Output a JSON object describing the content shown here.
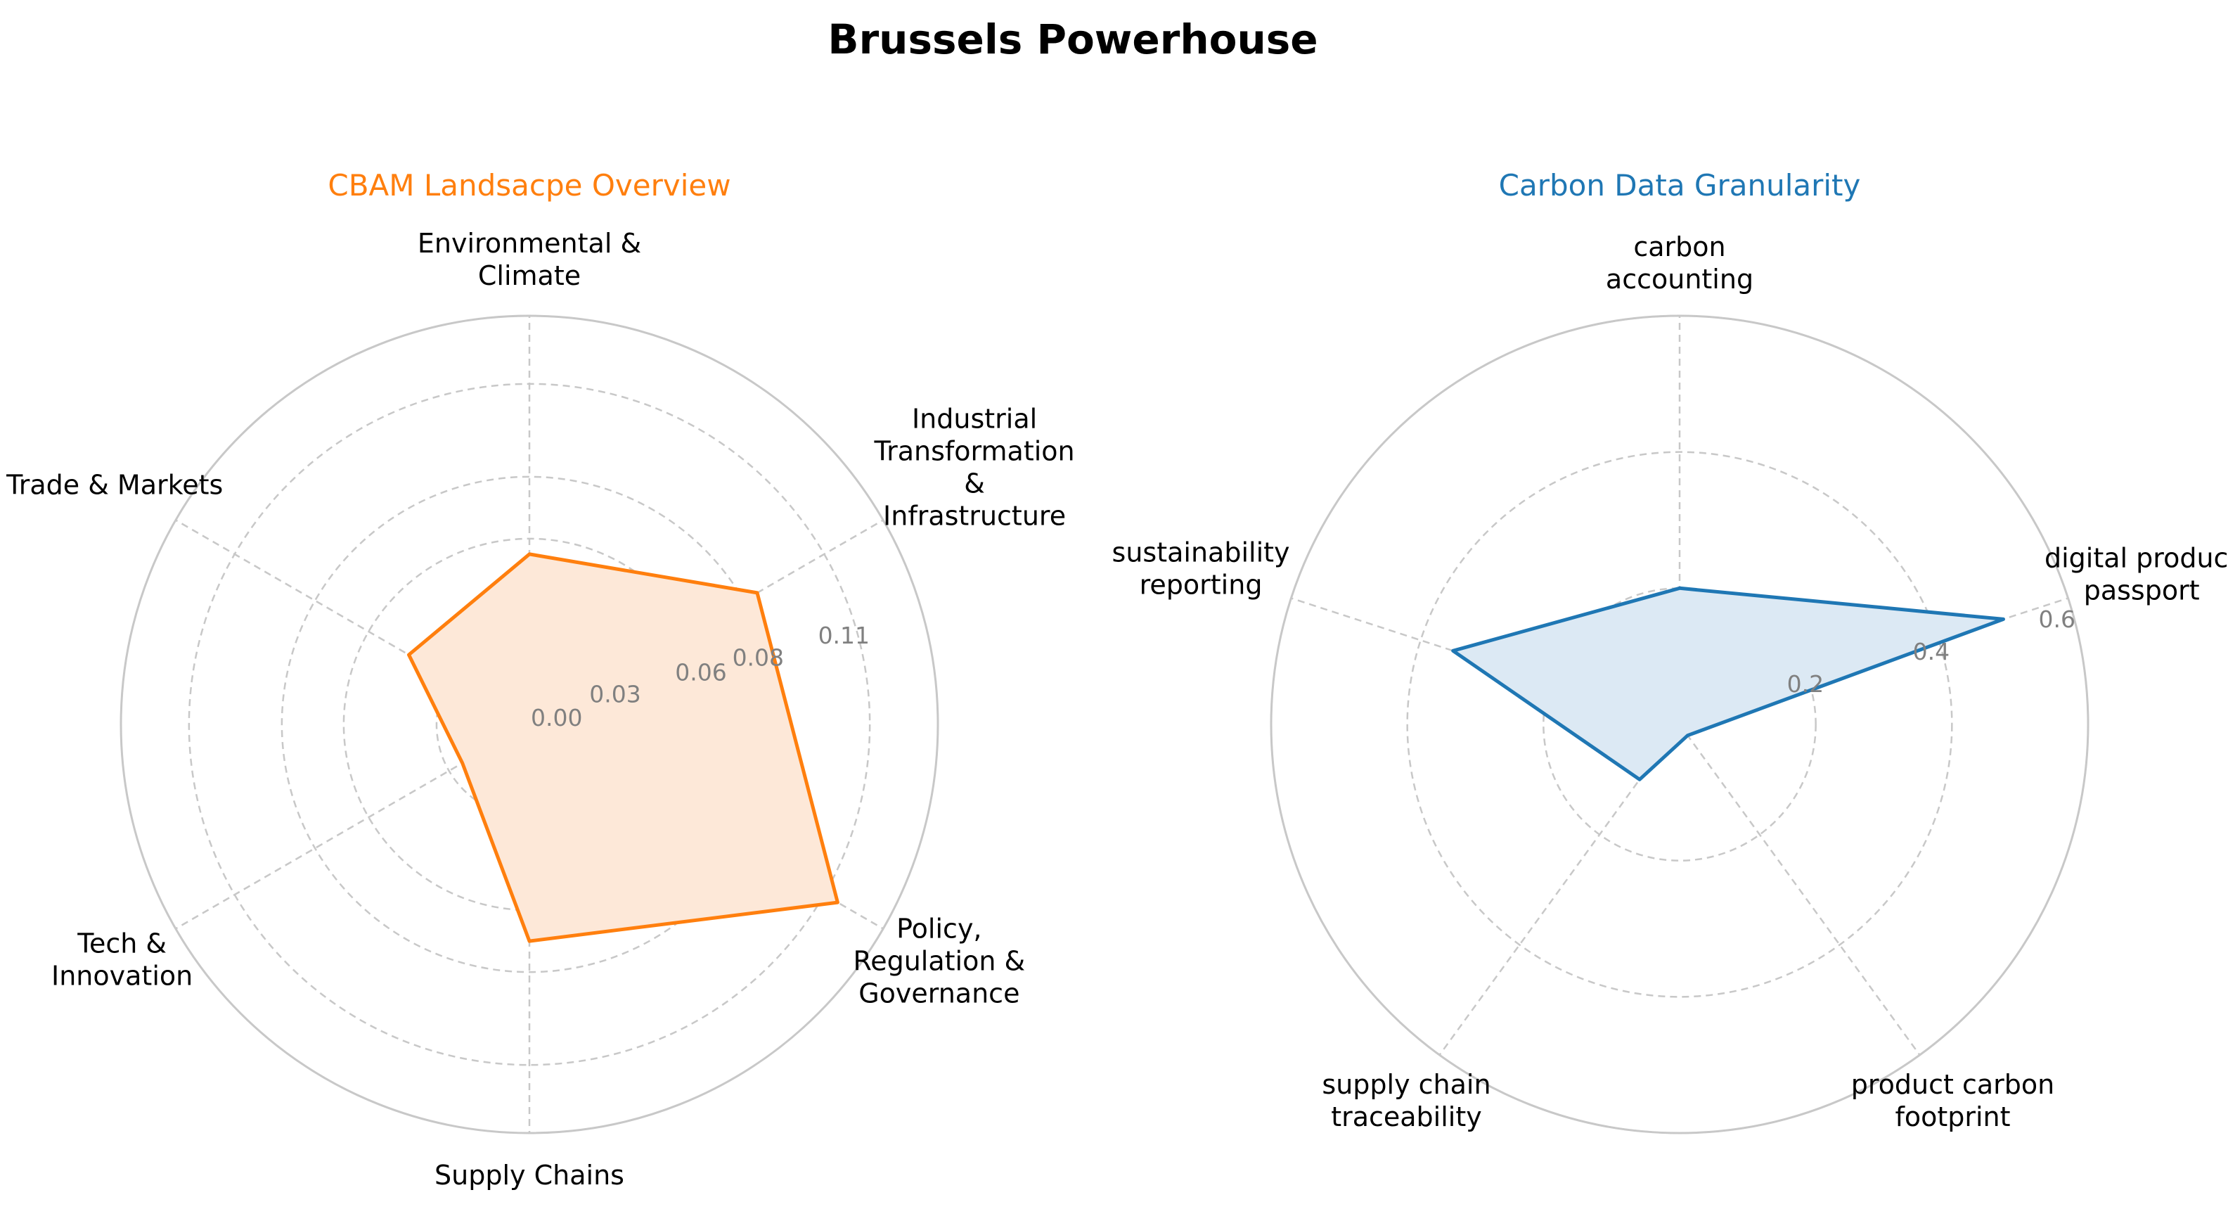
{
  "title": "Brussels Powerhouse",
  "chart_data": [
    {
      "type": "radar",
      "title": "CBAM Landsacpe Overview",
      "title_color": "#ff7f0e",
      "line_color": "#ff7f0e",
      "fill_color": "#fde8d8",
      "categories": [
        "Environmental &\nClimate",
        "Industrial\nTransformation\n&\nInfrastructure",
        "Policy,\nRegulation &\nGovernance",
        "Supply Chains",
        "Tech &\nInnovation",
        "Trade & Markets"
      ],
      "values": [
        0.055,
        0.085,
        0.115,
        0.07,
        0.025,
        0.045
      ],
      "rmax": 0.132,
      "rticks": [
        0.0,
        0.03,
        0.06,
        0.08,
        0.11
      ],
      "rtick_labels": [
        "0.00",
        "0.03",
        "0.06",
        "0.08",
        "0.11"
      ],
      "grid": true
    },
    {
      "type": "radar",
      "title": "Carbon Data Granularity",
      "title_color": "#1f77b4",
      "line_color": "#1f77b4",
      "fill_color": "#dce9f4",
      "categories": [
        "carbon\naccounting",
        "digital product\npassport",
        "product carbon\nfootprint",
        "supply chain\ntraceability",
        "sustainability\nreporting"
      ],
      "values": [
        0.2,
        0.5,
        0.02,
        0.1,
        0.35
      ],
      "rmax": 0.6,
      "rticks": [
        0.2,
        0.4,
        0.6
      ],
      "rtick_labels": [
        "0.2",
        "0.4",
        "0.6"
      ],
      "grid": true
    }
  ]
}
